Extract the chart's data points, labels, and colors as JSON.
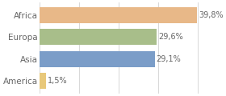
{
  "categories": [
    "America",
    "Asia",
    "Europa",
    "Africa"
  ],
  "values": [
    1.5,
    29.1,
    29.6,
    39.8
  ],
  "bar_colors": [
    "#e8c87a",
    "#7b9dc8",
    "#a8be8a",
    "#e8b888"
  ],
  "labels": [
    "1,5%",
    "29,1%",
    "29,6%",
    "39,8%"
  ],
  "xlim": [
    0,
    44
  ],
  "bar_height": 0.72,
  "label_fontsize": 7,
  "tick_fontsize": 7.5,
  "background_color": "#ffffff",
  "grid_color": "#d8d8d8",
  "label_color": "#666666",
  "tick_color": "#666666"
}
